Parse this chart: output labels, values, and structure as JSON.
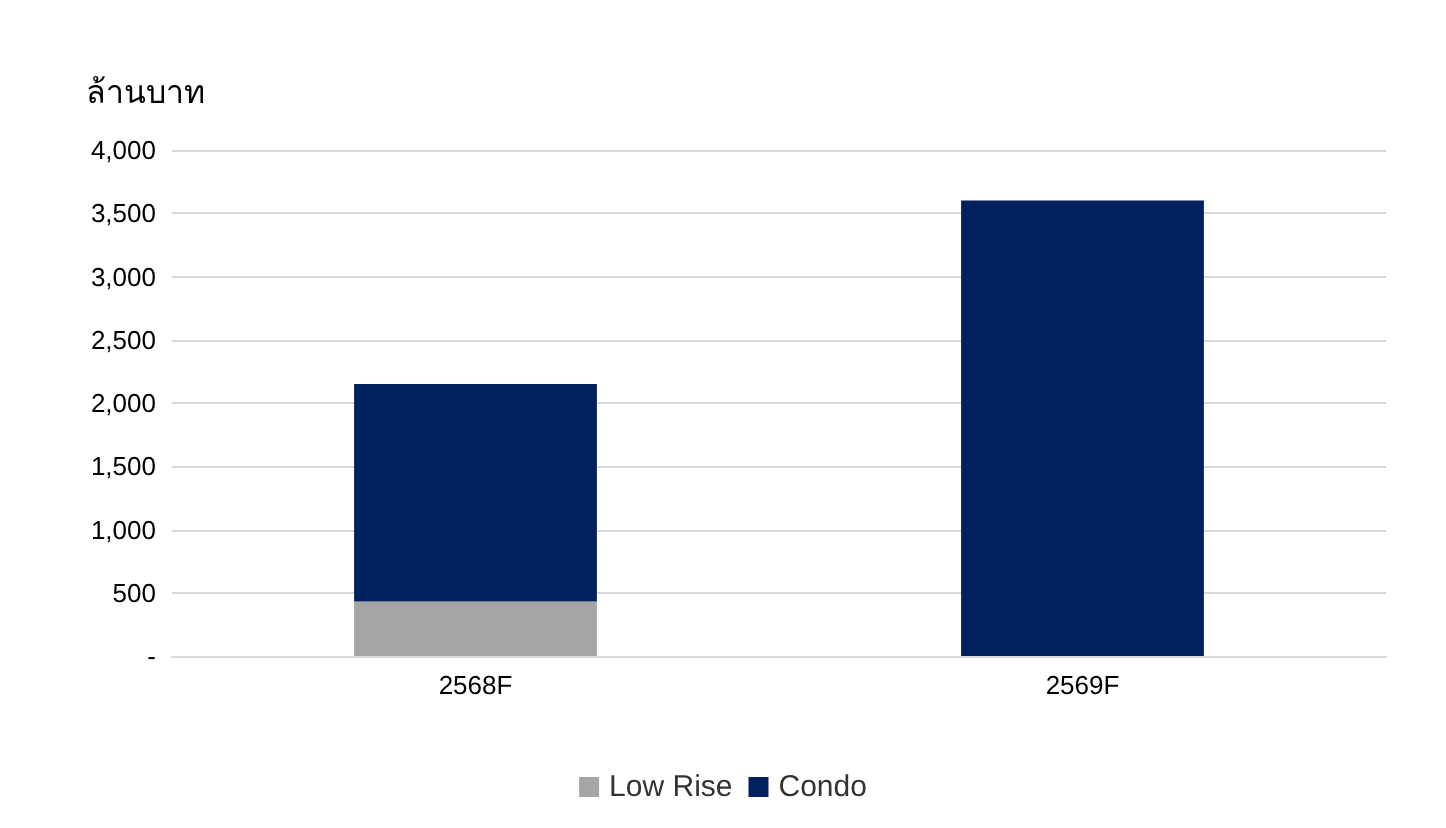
{
  "chart_data": {
    "type": "bar",
    "ylabel": "ล้านบาท",
    "categories": [
      "2568F",
      "2569F"
    ],
    "stacked": true,
    "series": [
      {
        "name": "Low Rise",
        "color": "#a5a5a5",
        "values": [
          430,
          0
        ]
      },
      {
        "name": "Condo",
        "color": "#002060",
        "values": [
          1720,
          3600
        ]
      }
    ],
    "ylim": [
      0,
      4000
    ],
    "yticks": [
      {
        "value": 0,
        "label": "-"
      },
      {
        "value": 500,
        "label": "500"
      },
      {
        "value": 1000,
        "label": "1,000"
      },
      {
        "value": 1500,
        "label": "1,500"
      },
      {
        "value": 2000,
        "label": "2,000"
      },
      {
        "value": 2500,
        "label": "2,500"
      },
      {
        "value": 3000,
        "label": "3,000"
      },
      {
        "value": 3500,
        "label": "3,500"
      },
      {
        "value": 4000,
        "label": "4,000"
      }
    ],
    "grid": "y",
    "legend": "bottom"
  }
}
